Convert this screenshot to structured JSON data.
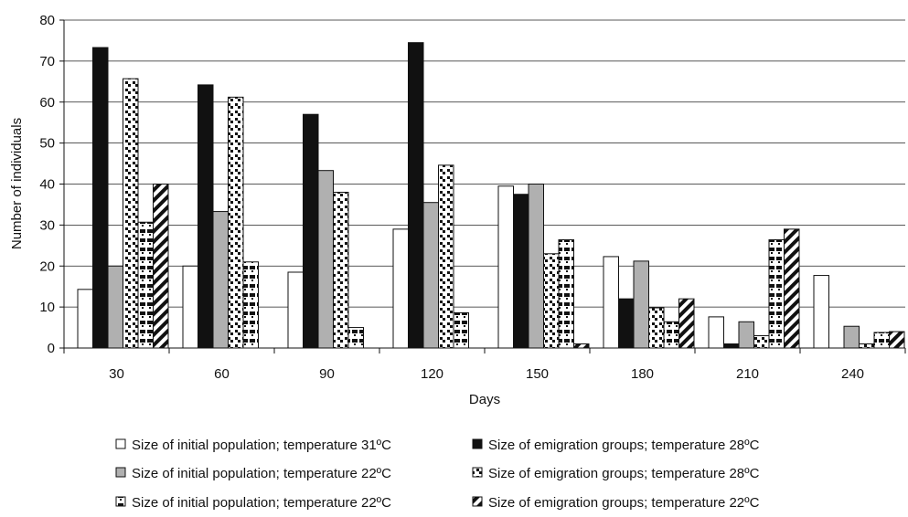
{
  "chart_data": {
    "type": "bar",
    "xlabel": "Days",
    "ylabel": "Number of individuals",
    "ylim": [
      0,
      80
    ],
    "yticks": [
      0,
      10,
      20,
      30,
      40,
      50,
      60,
      70,
      80
    ],
    "grid": true,
    "legend_position": "bottom",
    "categories": [
      "30",
      "60",
      "90",
      "120",
      "150",
      "180",
      "210",
      "240"
    ],
    "series": [
      {
        "name": "Size of initial population; temperature 31ºC",
        "pattern": "white",
        "values": [
          14.3,
          20,
          18.5,
          29,
          39.5,
          22.3,
          7.6,
          17.7
        ]
      },
      {
        "name": "Size of emigration groups; temperature 28ºC",
        "pattern": "black",
        "values": [
          73.3,
          64.2,
          57,
          74.5,
          37.5,
          12,
          1,
          0
        ]
      },
      {
        "name": "Size of initial population; temperature 22ºC",
        "pattern": "gray",
        "values": [
          20,
          33.3,
          43.3,
          35.5,
          40,
          21.2,
          6.4,
          5.3
        ]
      },
      {
        "name": "Size of emigration groups; temperature 28ºC",
        "pattern": "checker",
        "values": [
          65.7,
          61.2,
          38,
          44.6,
          23,
          9.8,
          3,
          1
        ]
      },
      {
        "name": "Size of initial population; temperature 22ºC",
        "pattern": "dotted",
        "values": [
          30.7,
          21,
          5,
          8.6,
          26.4,
          6.4,
          26.4,
          3.8
        ]
      },
      {
        "name": "Size of emigration groups; temperature 22ºC",
        "pattern": "diagonal",
        "values": [
          40,
          0,
          0,
          0,
          1,
          12,
          29,
          4
        ]
      }
    ]
  }
}
